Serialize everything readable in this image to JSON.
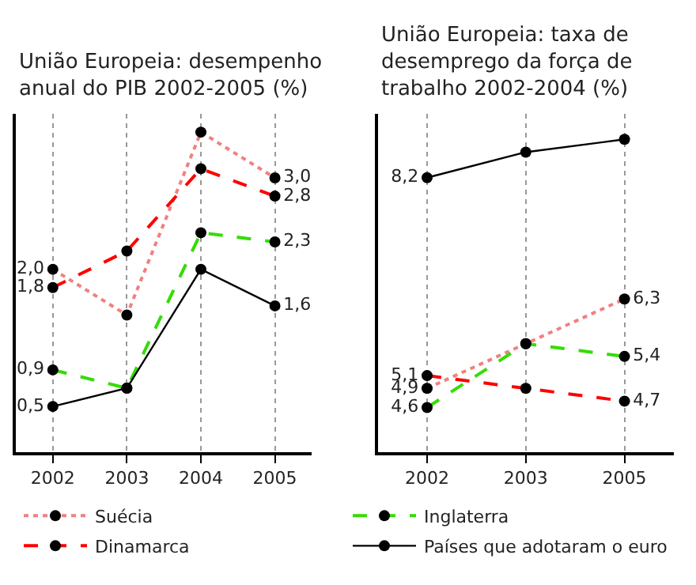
{
  "chart_data": [
    {
      "type": "line",
      "title": "União Europeia: desempenho anual do PIB 2002-2005 (%)",
      "categories": [
        "2002",
        "2003",
        "2004",
        "2005"
      ],
      "ylim": [
        0,
        3.7
      ],
      "tick_labels": "x",
      "grid": "x",
      "marker": "circle",
      "legend": "bottom",
      "series": [
        {
          "name": "Suécia",
          "color": "#f08080",
          "line_style": "dotted",
          "values": [
            2.0,
            1.5,
            3.5,
            3.0
          ],
          "value_labels": [
            "2,0",
            null,
            null,
            "3,0"
          ]
        },
        {
          "name": "Inglaterra",
          "color": "#33dd00",
          "line_style": "dashed",
          "values": [
            0.9,
            0.7,
            2.4,
            2.3
          ],
          "value_labels": [
            "0,9",
            null,
            null,
            "2,3"
          ]
        },
        {
          "name": "Dinamarca",
          "color": "#ff0000",
          "line_style": "dashed",
          "values": [
            1.8,
            2.2,
            3.1,
            2.8
          ],
          "value_labels": [
            "1,8",
            null,
            null,
            "2,8"
          ]
        },
        {
          "name": "Países que adotaram o euro",
          "color": "#000000",
          "line_style": "solid",
          "values": [
            0.5,
            0.7,
            2.0,
            1.6
          ],
          "value_labels": [
            "0,5",
            null,
            null,
            "1,6"
          ]
        }
      ]
    },
    {
      "type": "line",
      "title": "União Europeia: taxa de desemprego da força de trabalho 2002-2004 (%)",
      "categories": [
        "2002",
        "2003",
        "2005"
      ],
      "ylim": [
        3.9,
        9.2
      ],
      "tick_labels": "x",
      "grid": "x",
      "marker": "circle",
      "series": [
        {
          "color": "#f08080",
          "line_style": "dotted",
          "values": [
            4.9,
            5.6,
            6.3
          ],
          "value_labels": [
            "4,9",
            null,
            "6,3"
          ]
        },
        {
          "color": "#33dd00",
          "line_style": "dashed",
          "values": [
            4.6,
            5.6,
            5.4
          ],
          "value_labels": [
            "4,6",
            null,
            "5,4"
          ]
        },
        {
          "color": "#ff0000",
          "line_style": "dashed",
          "values": [
            5.1,
            4.9,
            4.7
          ],
          "value_labels": [
            "5,1",
            null,
            "4,7"
          ]
        },
        {
          "color": "#000000",
          "line_style": "solid",
          "values": [
            8.2,
            8.6,
            8.8
          ],
          "value_labels": [
            "8,2",
            null,
            null
          ]
        }
      ]
    }
  ]
}
